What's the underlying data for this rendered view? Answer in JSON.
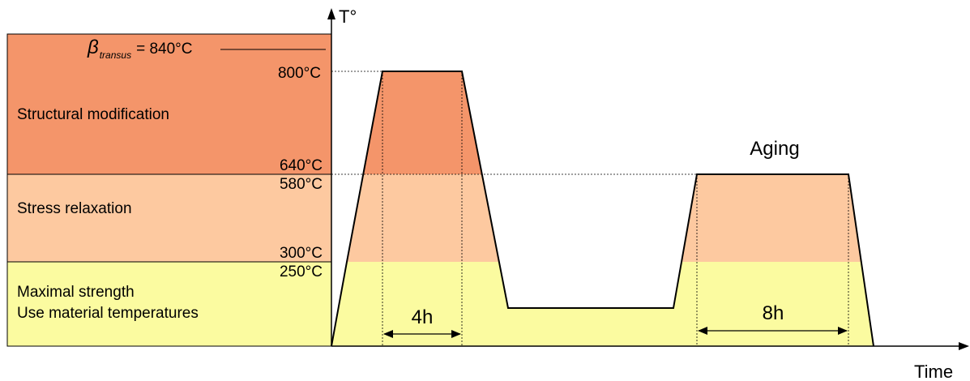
{
  "colors": {
    "zone_structural": "#f4956a",
    "zone_stress": "#fdc9a0",
    "zone_strength": "#fbfba0",
    "profile_above_640": "#f4956a",
    "profile_300_640": "#fdc9a0",
    "profile_below_300": "#fbfba0",
    "line": "#000000"
  },
  "axes": {
    "y_title": "T°",
    "x_title": "Time"
  },
  "beta_transus": {
    "symbol": "β",
    "subscript": "transus",
    "value": "= 840°C"
  },
  "zones": {
    "structural": "Structural modification",
    "stress": "Stress relaxation",
    "strength_line1": "Maximal strength",
    "strength_line2": "Use material temperatures"
  },
  "temperatures": {
    "t800": "800°C",
    "t640": "640°C",
    "t580": "580°C",
    "t300": "300°C",
    "t250": "250°C"
  },
  "annotations": {
    "hold_1": "4h",
    "hold_2": "8h",
    "aging": "Aging"
  }
}
